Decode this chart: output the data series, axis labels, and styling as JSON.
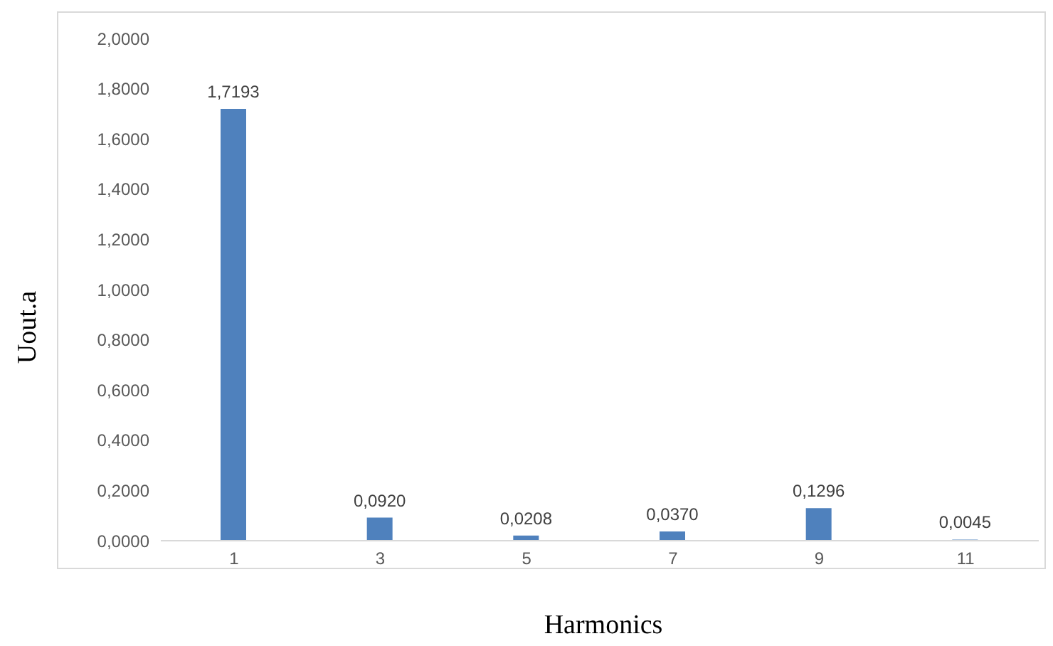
{
  "chart_data": {
    "type": "bar",
    "xlabel": "Harmonics",
    "ylabel": "Uout.a",
    "categories": [
      "1",
      "3",
      "5",
      "7",
      "9",
      "11"
    ],
    "values": [
      1.7193,
      0.092,
      0.0208,
      0.037,
      0.1296,
      0.0045
    ],
    "value_labels": [
      "1,7193",
      "0,0920",
      "0,0208",
      "0,0370",
      "0,1296",
      "0,0045"
    ],
    "color": "#4f81bd",
    "ylim": [
      0,
      2
    ],
    "yticks": [
      {
        "value": 0,
        "label": "0,0000"
      },
      {
        "value": 0.2,
        "label": "0,2000"
      },
      {
        "value": 0.4,
        "label": "0,4000"
      },
      {
        "value": 0.6,
        "label": "0,6000"
      },
      {
        "value": 0.8,
        "label": "0,8000"
      },
      {
        "value": 1,
        "label": "1,0000"
      },
      {
        "value": 1.2,
        "label": "1,2000"
      },
      {
        "value": 1.4,
        "label": "1,4000"
      },
      {
        "value": 1.6,
        "label": "1,6000"
      },
      {
        "value": 1.8,
        "label": "1,8000"
      },
      {
        "value": 2,
        "label": "2,0000"
      }
    ],
    "grid": false,
    "legend": false
  }
}
